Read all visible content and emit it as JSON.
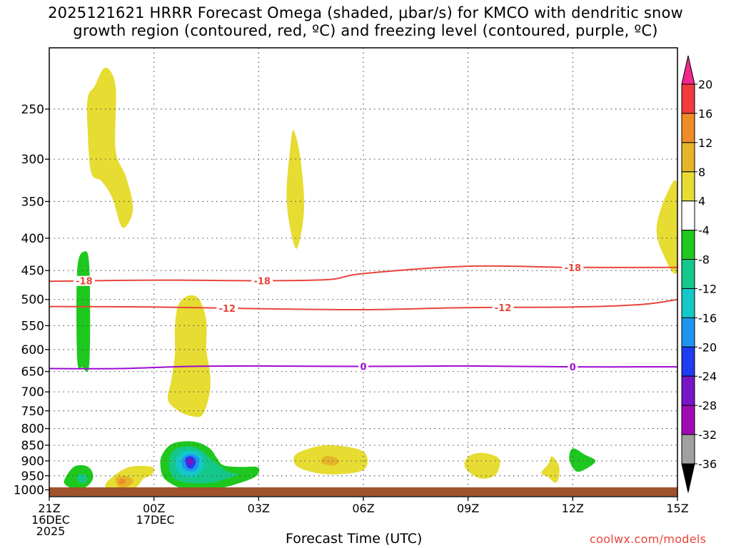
{
  "title": {
    "line1": "2025121621 HRRR Forecast Omega (shaded, μbar/s) for KMCO with dendritic snow",
    "line2": "growth region (contoured, red, ºC) and freezing level (contoured, purple, ºC)"
  },
  "credit": "coolwx.com/models",
  "chart_data": {
    "type": "heatmap",
    "xlabel": "Forecast Time (UTC)",
    "ylabel": "",
    "x_ticks": [
      {
        "hour": 0,
        "lines": [
          "21Z",
          "16DEC",
          "2025"
        ]
      },
      {
        "hour": 3,
        "lines": [
          "00Z",
          "17DEC"
        ]
      },
      {
        "hour": 6,
        "lines": [
          "03Z"
        ]
      },
      {
        "hour": 9,
        "lines": [
          "06Z"
        ]
      },
      {
        "hour": 12,
        "lines": [
          "09Z"
        ]
      },
      {
        "hour": 15,
        "lines": [
          "12Z"
        ]
      },
      {
        "hour": 18,
        "lines": [
          "15Z"
        ]
      }
    ],
    "xlim_hours": [
      0,
      18
    ],
    "y_ticks": [
      250,
      300,
      350,
      400,
      450,
      500,
      550,
      600,
      650,
      700,
      750,
      800,
      850,
      900,
      950,
      1000
    ],
    "ylim_hPa": [
      1025,
      200
    ],
    "colorbar": {
      "labels": [
        "20",
        "16",
        "12",
        "8",
        "4",
        "-4",
        "-8",
        "-12",
        "-16",
        "-20",
        "-24",
        "-28",
        "-32",
        "-36"
      ],
      "colors": [
        "#f0288c",
        "#f03c3c",
        "#f08c28",
        "#e6b428",
        "#e6dc32",
        "#ffffff",
        "#1ec81e",
        "#14c88c",
        "#14c8c8",
        "#1e96f0",
        "#1e3cf0",
        "#7814c8",
        "#a00ab4",
        "#a0a0a0",
        "#000000"
      ]
    },
    "omega_regions": [
      {
        "value": 4,
        "color": "#e6dc32",
        "points": [
          [
            1.3,
            230
          ],
          [
            1.6,
            215
          ],
          [
            1.9,
            230
          ],
          [
            1.9,
            290
          ],
          [
            2.2,
            320
          ],
          [
            2.4,
            360
          ],
          [
            2.1,
            385
          ],
          [
            1.8,
            345
          ],
          [
            1.5,
            325
          ],
          [
            1.2,
            315
          ],
          [
            1.1,
            270
          ],
          [
            1.1,
            240
          ]
        ]
      },
      {
        "value": 4,
        "color": "#e6dc32",
        "points": [
          [
            7.0,
            270
          ],
          [
            7.2,
            300
          ],
          [
            7.3,
            360
          ],
          [
            7.1,
            415
          ],
          [
            6.9,
            385
          ],
          [
            6.8,
            340
          ],
          [
            6.9,
            290
          ]
        ]
      },
      {
        "value": 4,
        "color": "#e6dc32",
        "points": [
          [
            18.0,
            330
          ],
          [
            17.7,
            340
          ],
          [
            17.4,
            385
          ],
          [
            17.6,
            425
          ],
          [
            18.0,
            450
          ]
        ]
      },
      {
        "value": 4,
        "color": "#e6dc32",
        "points": [
          [
            4.0,
            493
          ],
          [
            4.3,
            500
          ],
          [
            4.5,
            540
          ],
          [
            4.5,
            600
          ],
          [
            4.6,
            650
          ],
          [
            4.6,
            700
          ],
          [
            4.4,
            760
          ],
          [
            4.1,
            765
          ],
          [
            3.7,
            750
          ],
          [
            3.4,
            720
          ],
          [
            3.5,
            670
          ],
          [
            3.6,
            610
          ],
          [
            3.6,
            555
          ],
          [
            3.7,
            510
          ]
        ]
      },
      {
        "value": -8,
        "color": "#1ec81e",
        "points": [
          [
            1.0,
            420
          ],
          [
            1.15,
            445
          ],
          [
            1.15,
            630
          ],
          [
            0.95,
            640
          ],
          [
            0.8,
            620
          ],
          [
            0.8,
            450
          ]
        ]
      },
      {
        "value": 4,
        "color": "#e6dc32",
        "points": [
          [
            7.2,
            870
          ],
          [
            8.0,
            850
          ],
          [
            9.0,
            870
          ],
          [
            9.0,
            930
          ],
          [
            8.0,
            945
          ],
          [
            7.2,
            925
          ],
          [
            7.0,
            895
          ]
        ]
      },
      {
        "value": 8,
        "color": "#e6b428",
        "points": [
          [
            7.9,
            885
          ],
          [
            8.2,
            890
          ],
          [
            8.3,
            905
          ],
          [
            8.1,
            915
          ],
          [
            7.8,
            905
          ]
        ]
      },
      {
        "value": 4,
        "color": "#e6dc32",
        "points": [
          [
            12.1,
            880
          ],
          [
            12.5,
            875
          ],
          [
            12.9,
            895
          ],
          [
            12.8,
            945
          ],
          [
            12.4,
            960
          ],
          [
            12.0,
            935
          ],
          [
            11.9,
            905
          ]
        ]
      },
      {
        "value": 4,
        "color": "#e6dc32",
        "points": [
          [
            14.4,
            885
          ],
          [
            14.6,
            915
          ],
          [
            14.6,
            955
          ],
          [
            14.5,
            975
          ],
          [
            14.3,
            955
          ],
          [
            14.1,
            940
          ],
          [
            14.3,
            910
          ]
        ]
      },
      {
        "value": -8,
        "color": "#1ec81e",
        "points": [
          [
            15.0,
            860
          ],
          [
            15.35,
            880
          ],
          [
            15.65,
            900
          ],
          [
            15.4,
            925
          ],
          [
            15.1,
            935
          ],
          [
            14.9,
            895
          ]
        ]
      },
      {
        "value": 4,
        "color": "#e6dc32",
        "points": [
          [
            1.8,
            955
          ],
          [
            2.3,
            920
          ],
          [
            2.95,
            920
          ],
          [
            2.95,
            945
          ],
          [
            2.7,
            960
          ],
          [
            2.5,
            990
          ],
          [
            2.2,
            1005
          ],
          [
            1.8,
            1000
          ],
          [
            1.6,
            985
          ]
        ]
      },
      {
        "value": 8,
        "color": "#e6b428",
        "points": [
          [
            1.9,
            960
          ],
          [
            2.15,
            950
          ],
          [
            2.4,
            965
          ],
          [
            2.3,
            985
          ],
          [
            2.0,
            990
          ]
        ]
      },
      {
        "value": 12,
        "color": "#f08c28",
        "points": [
          [
            2.0,
            965
          ],
          [
            2.1,
            960
          ],
          [
            2.2,
            970
          ],
          [
            2.1,
            980
          ],
          [
            2.0,
            978
          ]
        ]
      },
      {
        "value": -8,
        "color": "#1ec81e",
        "points": [
          [
            0.45,
            960
          ],
          [
            0.7,
            920
          ],
          [
            1.0,
            915
          ],
          [
            1.2,
            930
          ],
          [
            1.25,
            960
          ],
          [
            1.05,
            990
          ],
          [
            0.7,
            995
          ],
          [
            0.45,
            980
          ]
        ]
      },
      {
        "value": -12,
        "color": "#14c88c",
        "points": [
          [
            0.8,
            950
          ],
          [
            1.0,
            945
          ],
          [
            1.1,
            960
          ],
          [
            1.0,
            975
          ],
          [
            0.85,
            972
          ]
        ]
      },
      {
        "value": -8,
        "color": "#1ec81e",
        "points": [
          [
            3.2,
            890
          ],
          [
            3.4,
            855
          ],
          [
            3.7,
            840
          ],
          [
            4.2,
            840
          ],
          [
            4.6,
            860
          ],
          [
            4.8,
            890
          ],
          [
            5.0,
            915
          ],
          [
            5.5,
            920
          ],
          [
            5.95,
            920
          ],
          [
            6.0,
            940
          ],
          [
            5.8,
            960
          ],
          [
            5.2,
            985
          ],
          [
            4.6,
            1000
          ],
          [
            4.0,
            1000
          ],
          [
            3.6,
            985
          ],
          [
            3.3,
            960
          ],
          [
            3.2,
            930
          ]
        ]
      },
      {
        "value": -12,
        "color": "#14c88c",
        "points": [
          [
            3.45,
            890
          ],
          [
            3.65,
            860
          ],
          [
            4.1,
            855
          ],
          [
            4.4,
            870
          ],
          [
            4.6,
            890
          ],
          [
            5.1,
            935
          ],
          [
            5.4,
            945
          ],
          [
            5.1,
            960
          ],
          [
            4.6,
            975
          ],
          [
            4.0,
            975
          ],
          [
            3.6,
            960
          ],
          [
            3.45,
            930
          ]
        ]
      },
      {
        "value": -16,
        "color": "#14c8c8",
        "points": [
          [
            3.65,
            890
          ],
          [
            3.85,
            870
          ],
          [
            4.2,
            870
          ],
          [
            4.4,
            890
          ],
          [
            4.4,
            925
          ],
          [
            4.2,
            950
          ],
          [
            3.85,
            950
          ],
          [
            3.65,
            925
          ]
        ]
      },
      {
        "value": -20,
        "color": "#1e96f0",
        "points": [
          [
            3.8,
            895
          ],
          [
            3.95,
            880
          ],
          [
            4.15,
            880
          ],
          [
            4.3,
            895
          ],
          [
            4.25,
            925
          ],
          [
            4.1,
            935
          ],
          [
            3.9,
            930
          ],
          [
            3.8,
            915
          ]
        ]
      },
      {
        "value": -24,
        "color": "#1e3cf0",
        "points": [
          [
            3.9,
            895
          ],
          [
            4.0,
            885
          ],
          [
            4.15,
            890
          ],
          [
            4.2,
            905
          ],
          [
            4.1,
            925
          ],
          [
            3.95,
            920
          ]
        ]
      },
      {
        "value": -28,
        "color": "#7814c8",
        "points": [
          [
            3.95,
            897
          ],
          [
            4.05,
            890
          ],
          [
            4.12,
            900
          ],
          [
            4.1,
            913
          ],
          [
            3.98,
            912
          ]
        ]
      }
    ],
    "dendritic_contours": [
      {
        "label": "-18",
        "color": "#e8453c",
        "points": [
          [
            0,
            468
          ],
          [
            3,
            466
          ],
          [
            6,
            467
          ],
          [
            8,
            465
          ],
          [
            9,
            455
          ],
          [
            12,
            443
          ],
          [
            15,
            445
          ],
          [
            18,
            445
          ]
        ],
        "label_hours": [
          1.0,
          6.1,
          15.0
        ]
      },
      {
        "label": "-12",
        "color": "#e8453c",
        "points": [
          [
            0,
            513
          ],
          [
            3,
            514
          ],
          [
            6,
            517
          ],
          [
            9,
            519
          ],
          [
            12,
            515
          ],
          [
            15,
            514
          ],
          [
            17,
            509
          ],
          [
            18,
            500
          ]
        ],
        "label_hours": [
          5.1,
          13.0
        ]
      }
    ],
    "freezing_contours": [
      {
        "label": "0",
        "color": "#9e0ad2",
        "points": [
          [
            0,
            643
          ],
          [
            2,
            643
          ],
          [
            4,
            638
          ],
          [
            6,
            637
          ],
          [
            9,
            638
          ],
          [
            12,
            637
          ],
          [
            15,
            639
          ],
          [
            18,
            639
          ]
        ],
        "label_hours": [
          9.0,
          15.0
        ]
      }
    ]
  }
}
